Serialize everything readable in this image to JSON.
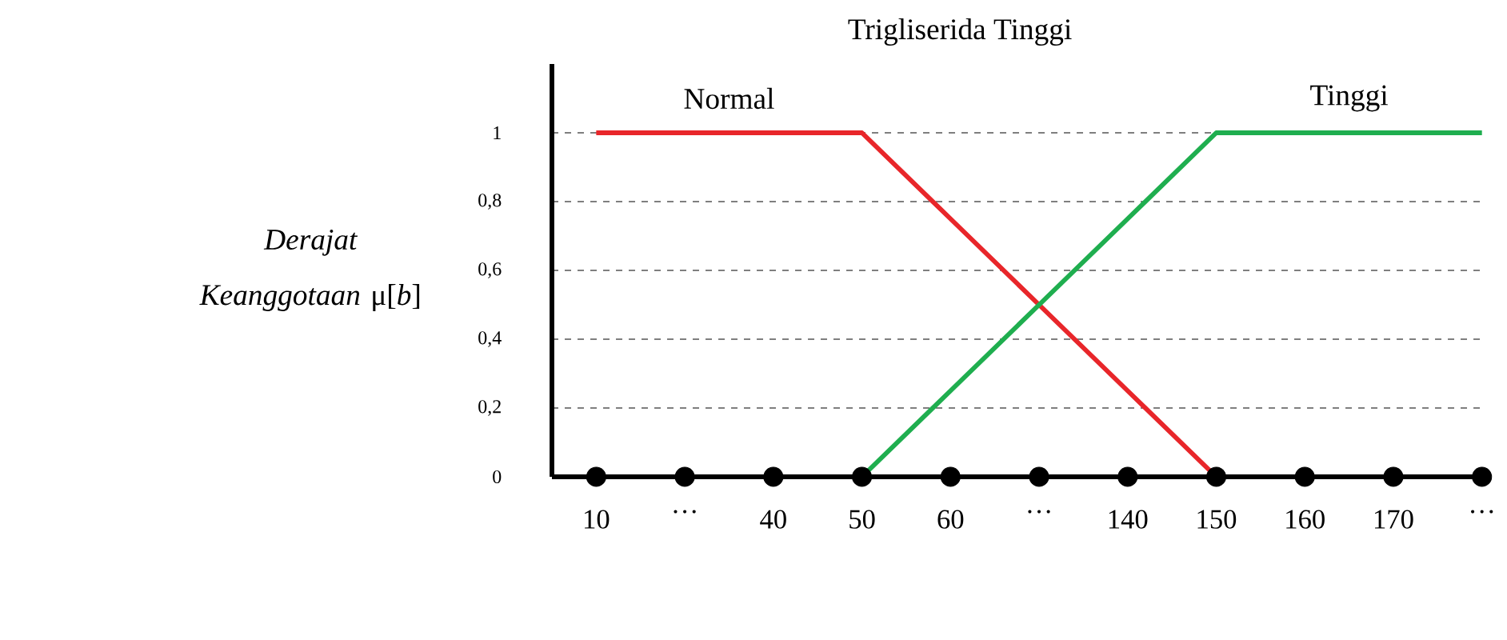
{
  "chart_data": {
    "type": "line",
    "title": "Trigliserida Tinggi",
    "ylabel": "*Derajat Keanggotaan* μ[*b*]",
    "categories": [
      "10",
      "…",
      "40",
      "50",
      "60",
      "…",
      "140",
      "150",
      "160",
      "170",
      "…"
    ],
    "series": [
      {
        "name": "Normal",
        "color": "#e8262a",
        "values": [
          1,
          1,
          1,
          1,
          0.75,
          0.5,
          0.25,
          0,
          null,
          null,
          null
        ]
      },
      {
        "name": "Tinggi",
        "color": "#1fae4f",
        "values": [
          null,
          null,
          null,
          0,
          0.25,
          0.5,
          0.75,
          1,
          1,
          1,
          1
        ]
      },
      {
        "type": "scatter",
        "color": "#000000",
        "values": [
          0,
          0,
          0,
          0,
          0,
          0,
          0,
          0,
          0,
          0,
          0
        ]
      }
    ],
    "ylim": [
      0,
      1.2
    ],
    "yticks": [
      0,
      {
        "value": 0.2,
        "label": "0,2"
      },
      {
        "value": 0.4,
        "label": "0,4"
      },
      {
        "value": 0.6,
        "label": "0,6"
      },
      {
        "value": 0.8,
        "label": "0,8"
      },
      1
    ],
    "grid": "y",
    "line_style": "solid"
  }
}
